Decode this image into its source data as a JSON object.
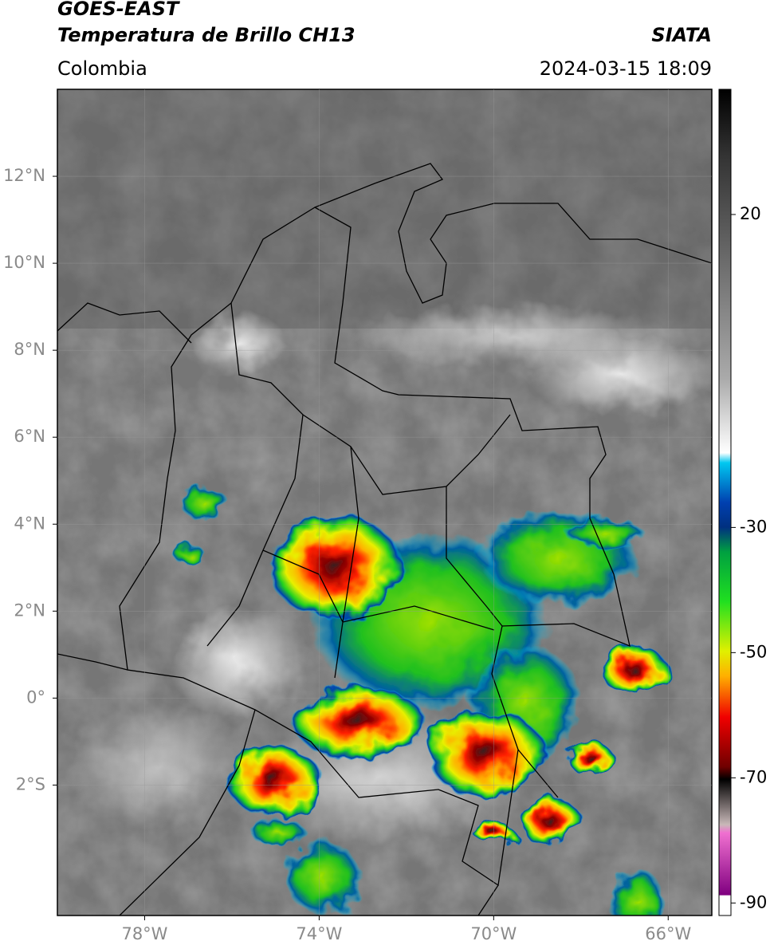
{
  "header": {
    "title": "GOES-EAST",
    "subtitle": "Temperatura de Brillo CH13",
    "region": "Colombia",
    "source": "SIATA",
    "datetime": "2024-03-15 18:09"
  },
  "map": {
    "lonlim": [
      -80,
      -65
    ],
    "latlim": [
      -5,
      14
    ],
    "lonticks": [
      {
        "value": -78,
        "label": "78°W"
      },
      {
        "value": -74,
        "label": "74°W"
      },
      {
        "value": -70,
        "label": "70°W"
      },
      {
        "value": -66,
        "label": "66°W"
      }
    ],
    "latticks": [
      {
        "value": 12,
        "label": "12°N"
      },
      {
        "value": 10,
        "label": "10°N"
      },
      {
        "value": 8,
        "label": "8°N"
      },
      {
        "value": 6,
        "label": "6°N"
      },
      {
        "value": 4,
        "label": "4°N"
      },
      {
        "value": 2,
        "label": "2°N"
      },
      {
        "value": 0,
        "label": "0°"
      },
      {
        "value": -2,
        "label": "2°S"
      }
    ],
    "grid": true
  },
  "colorbar": {
    "lim": [
      -92,
      40
    ],
    "ticks": [
      20,
      -30,
      -50,
      -70,
      -90
    ]
  }
}
